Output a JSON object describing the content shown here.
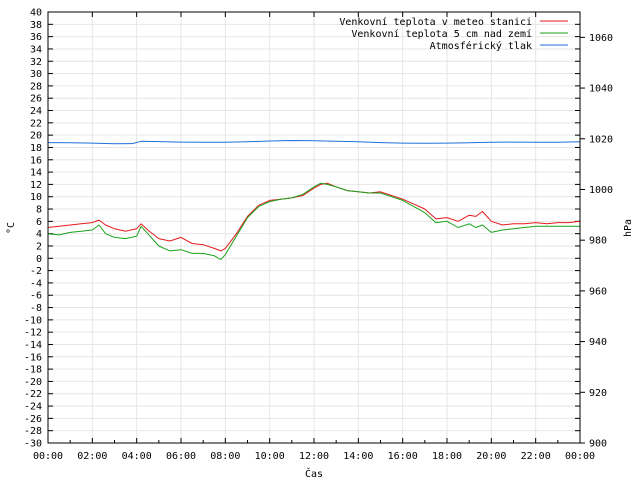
{
  "chart_data": {
    "type": "line",
    "xlabel": "Čas",
    "ylabel_left": "°C",
    "ylabel_right": "hPa",
    "ylim_left": [
      -30,
      40
    ],
    "ylim_right": [
      900,
      1070
    ],
    "xlim": [
      0,
      24
    ],
    "left_ticks": [
      "-30",
      "-28",
      "-26",
      "-24",
      "-22",
      "-20",
      "-18",
      "-16",
      "-14",
      "-12",
      "-10",
      "-8",
      "-6",
      "-4",
      "-2",
      "0",
      "2",
      "4",
      "6",
      "8",
      "10",
      "12",
      "14",
      "16",
      "18",
      "20",
      "22",
      "24",
      "26",
      "28",
      "30",
      "32",
      "34",
      "36",
      "38",
      "40"
    ],
    "right_ticks": [
      "900",
      "920",
      "940",
      "960",
      "980",
      "1000",
      "1020",
      "1040",
      "1060"
    ],
    "x_ticks": [
      "00:00",
      "02:00",
      "04:00",
      "06:00",
      "08:00",
      "10:00",
      "12:00",
      "14:00",
      "16:00",
      "18:00",
      "20:00",
      "22:00",
      "00:00"
    ],
    "grid": true,
    "legend_position": "top-right",
    "series": [
      {
        "name": "Venkovní teplota v meteo stanici",
        "color": "#e41a1c",
        "axis": "left",
        "x": [
          0,
          0.5,
          1,
          1.5,
          2,
          2.3,
          2.6,
          3,
          3.5,
          4,
          4.2,
          4.5,
          5,
          5.5,
          6,
          6.5,
          7,
          7.5,
          7.8,
          8,
          8.5,
          9,
          9.5,
          10,
          10.5,
          11,
          11.5,
          12,
          12.3,
          12.6,
          13,
          13.5,
          14,
          14.5,
          15,
          15.5,
          16,
          16.5,
          17,
          17.5,
          18,
          18.5,
          19,
          19.3,
          19.6,
          20,
          20.5,
          21,
          21.5,
          22,
          22.5,
          23,
          23.5,
          24
        ],
        "values": [
          5.0,
          5.2,
          5.4,
          5.6,
          5.8,
          6.2,
          5.4,
          4.8,
          4.4,
          4.8,
          5.6,
          4.6,
          3.2,
          2.8,
          3.4,
          2.4,
          2.2,
          1.6,
          1.2,
          1.6,
          4.0,
          6.8,
          8.6,
          9.4,
          9.6,
          9.8,
          10.2,
          11.4,
          12.0,
          12.2,
          11.6,
          11.0,
          10.8,
          10.6,
          10.8,
          10.2,
          9.6,
          8.8,
          8.0,
          6.4,
          6.6,
          6.0,
          7.0,
          6.8,
          7.6,
          6.0,
          5.4,
          5.6,
          5.6,
          5.8,
          5.6,
          5.8,
          5.8,
          6.0
        ]
      },
      {
        "name": "Venkovní teplota 5 cm nad zemí",
        "color": "#1aa31a",
        "axis": "left",
        "x": [
          0,
          0.5,
          1,
          1.5,
          2,
          2.3,
          2.6,
          3,
          3.5,
          4,
          4.2,
          4.5,
          5,
          5.5,
          6,
          6.5,
          7,
          7.5,
          7.8,
          8,
          8.5,
          9,
          9.5,
          10,
          10.5,
          11,
          11.5,
          12,
          12.3,
          12.6,
          13,
          13.5,
          14,
          14.5,
          15,
          15.5,
          16,
          16.5,
          17,
          17.5,
          18,
          18.5,
          19,
          19.3,
          19.6,
          20,
          20.5,
          21,
          21.5,
          22,
          22.5,
          23,
          23.5,
          24
        ],
        "values": [
          4.0,
          3.8,
          4.2,
          4.4,
          4.6,
          5.4,
          4.0,
          3.4,
          3.2,
          3.6,
          5.2,
          4.0,
          2.0,
          1.2,
          1.4,
          0.8,
          0.8,
          0.4,
          -0.2,
          0.6,
          3.6,
          6.6,
          8.4,
          9.2,
          9.6,
          9.8,
          10.4,
          11.6,
          12.2,
          12.0,
          11.6,
          11.0,
          10.8,
          10.6,
          10.6,
          10.0,
          9.4,
          8.4,
          7.4,
          5.8,
          6.0,
          5.0,
          5.6,
          5.0,
          5.4,
          4.2,
          4.6,
          4.8,
          5.0,
          5.2,
          5.2,
          5.2,
          5.2,
          5.2
        ]
      },
      {
        "name": "Atmosférický tlak",
        "color": "#1e6fd9",
        "axis": "right",
        "x": [
          0,
          1,
          2,
          3,
          3.8,
          4.2,
          5,
          6,
          7,
          8,
          9,
          10,
          11,
          12,
          13,
          14,
          15,
          16,
          17,
          18,
          19,
          20,
          21,
          22,
          23,
          24
        ],
        "values": [
          1018.5,
          1018.4,
          1018.3,
          1018.0,
          1018.1,
          1019.0,
          1018.9,
          1018.7,
          1018.6,
          1018.6,
          1018.8,
          1019.1,
          1019.3,
          1019.2,
          1019.0,
          1018.8,
          1018.5,
          1018.3,
          1018.2,
          1018.3,
          1018.4,
          1018.6,
          1018.7,
          1018.6,
          1018.6,
          1018.8
        ]
      }
    ]
  }
}
